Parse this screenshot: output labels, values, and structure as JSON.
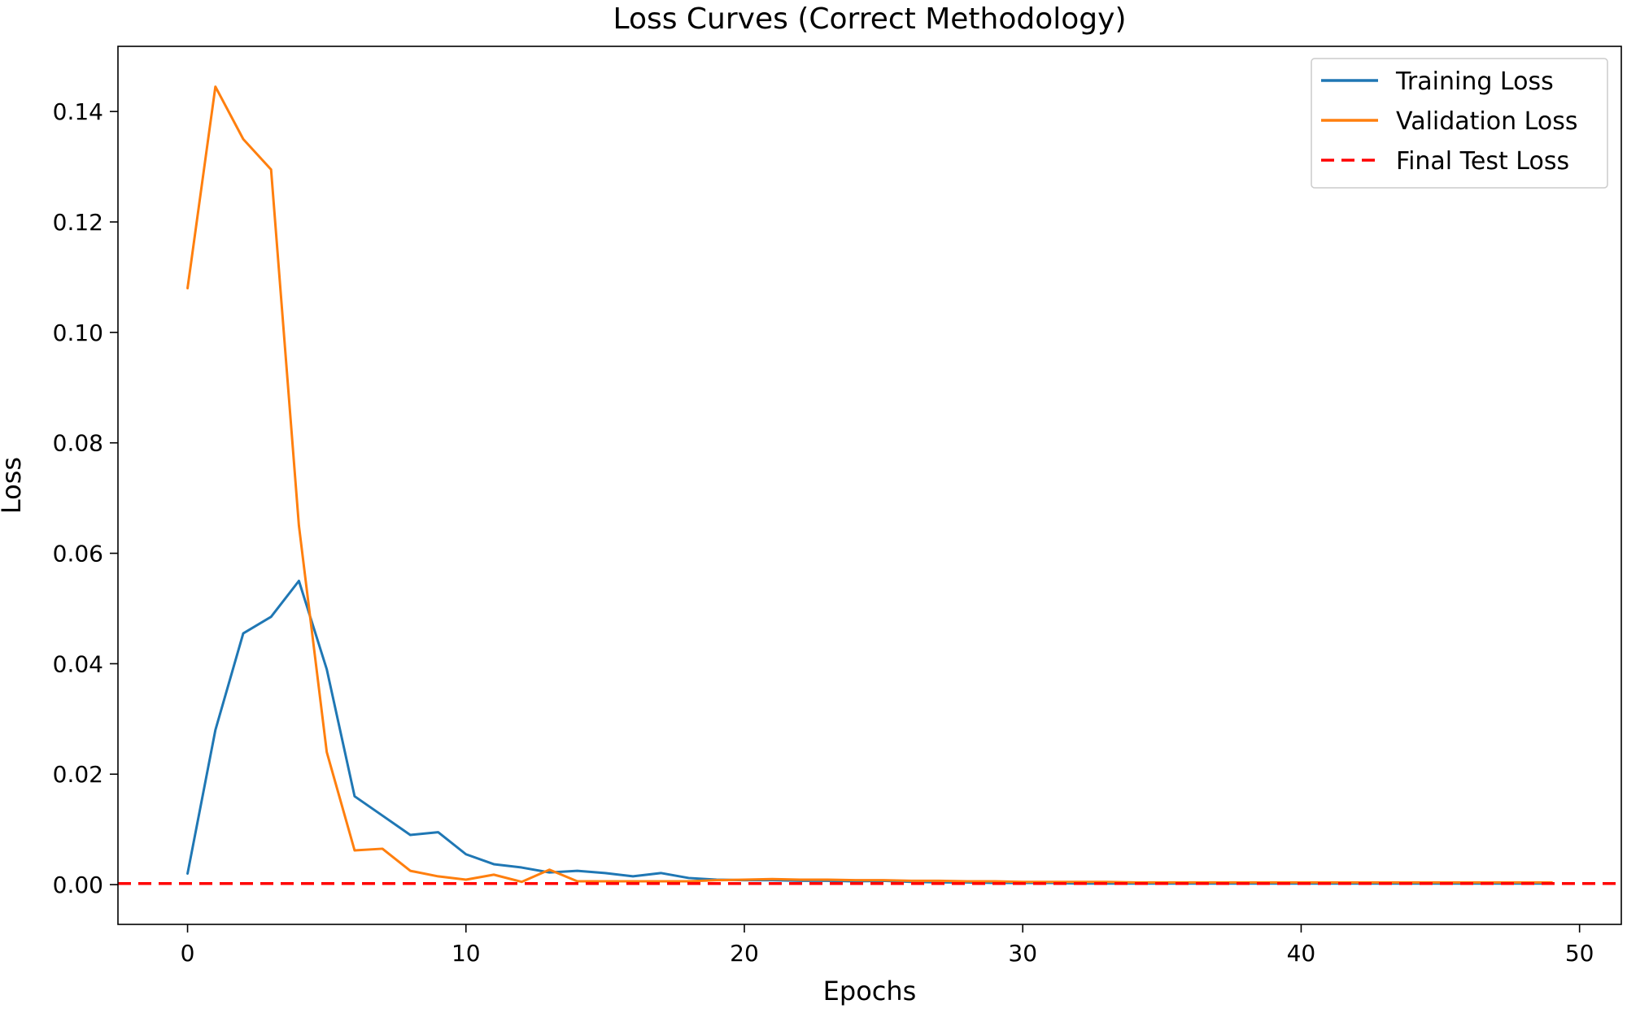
{
  "chart_data": {
    "type": "line",
    "title": "Loss Curves (Correct Methodology)",
    "xlabel": "Epochs",
    "ylabel": "Loss",
    "xlim": [
      -2.5,
      51.5
    ],
    "ylim": [
      -0.0072,
      0.1518
    ],
    "xticks": [
      0,
      10,
      20,
      30,
      40,
      50
    ],
    "xtick_labels": [
      "0",
      "10",
      "20",
      "30",
      "40",
      "50"
    ],
    "yticks": [
      0.0,
      0.02,
      0.04,
      0.06,
      0.08,
      0.1,
      0.12,
      0.14
    ],
    "ytick_labels": [
      "0.00",
      "0.02",
      "0.04",
      "0.06",
      "0.08",
      "0.10",
      "0.12",
      "0.14"
    ],
    "grid": false,
    "legend_position": "top-right",
    "x": [
      0,
      1,
      2,
      3,
      4,
      5,
      6,
      7,
      8,
      9,
      10,
      11,
      12,
      13,
      14,
      15,
      16,
      17,
      18,
      19,
      20,
      21,
      22,
      23,
      24,
      25,
      26,
      27,
      28,
      29,
      30,
      31,
      32,
      33,
      34,
      35,
      36,
      37,
      38,
      39,
      40,
      41,
      42,
      43,
      44,
      45,
      46,
      47,
      48,
      49
    ],
    "series": [
      {
        "name": "Training Loss",
        "color": "#1f77b4",
        "style": "solid",
        "values": [
          0.002,
          0.028,
          0.0455,
          0.0485,
          0.055,
          0.039,
          0.016,
          0.0125,
          0.009,
          0.0095,
          0.0055,
          0.0037,
          0.0031,
          0.0022,
          0.0025,
          0.0021,
          0.0015,
          0.0021,
          0.0012,
          0.0009,
          0.0008,
          0.0008,
          0.0007,
          0.0007,
          0.0006,
          0.0007,
          0.0005,
          0.0004,
          0.0004,
          0.0003,
          0.0003,
          0.0003,
          0.0002,
          0.0002,
          0.0002,
          0.0002,
          0.0002,
          0.0002,
          0.0002,
          0.0002,
          0.0002,
          0.0002,
          0.0002,
          0.0002,
          0.0002,
          0.0002,
          0.0002,
          0.0002,
          0.0002,
          0.0002
        ]
      },
      {
        "name": "Validation Loss",
        "color": "#ff7f0e",
        "style": "solid",
        "values": [
          0.108,
          0.1445,
          0.135,
          0.1295,
          0.065,
          0.024,
          0.0062,
          0.0065,
          0.0025,
          0.0015,
          0.0009,
          0.0018,
          0.0005,
          0.0027,
          0.0006,
          0.0006,
          0.0006,
          0.0006,
          0.0006,
          0.0008,
          0.0009,
          0.001,
          0.0009,
          0.0009,
          0.0008,
          0.0008,
          0.0007,
          0.0007,
          0.0006,
          0.0006,
          0.0005,
          0.0005,
          0.0005,
          0.0005,
          0.0004,
          0.0004,
          0.0004,
          0.0004,
          0.0004,
          0.0004,
          0.0004,
          0.0004,
          0.0004,
          0.0004,
          0.0004,
          0.0004,
          0.0004,
          0.0004,
          0.0004,
          0.0004
        ]
      }
    ],
    "hlines": [
      {
        "name": "Final Test Loss",
        "color": "#ff0000",
        "style": "dashed",
        "y": 0.0002
      }
    ]
  }
}
